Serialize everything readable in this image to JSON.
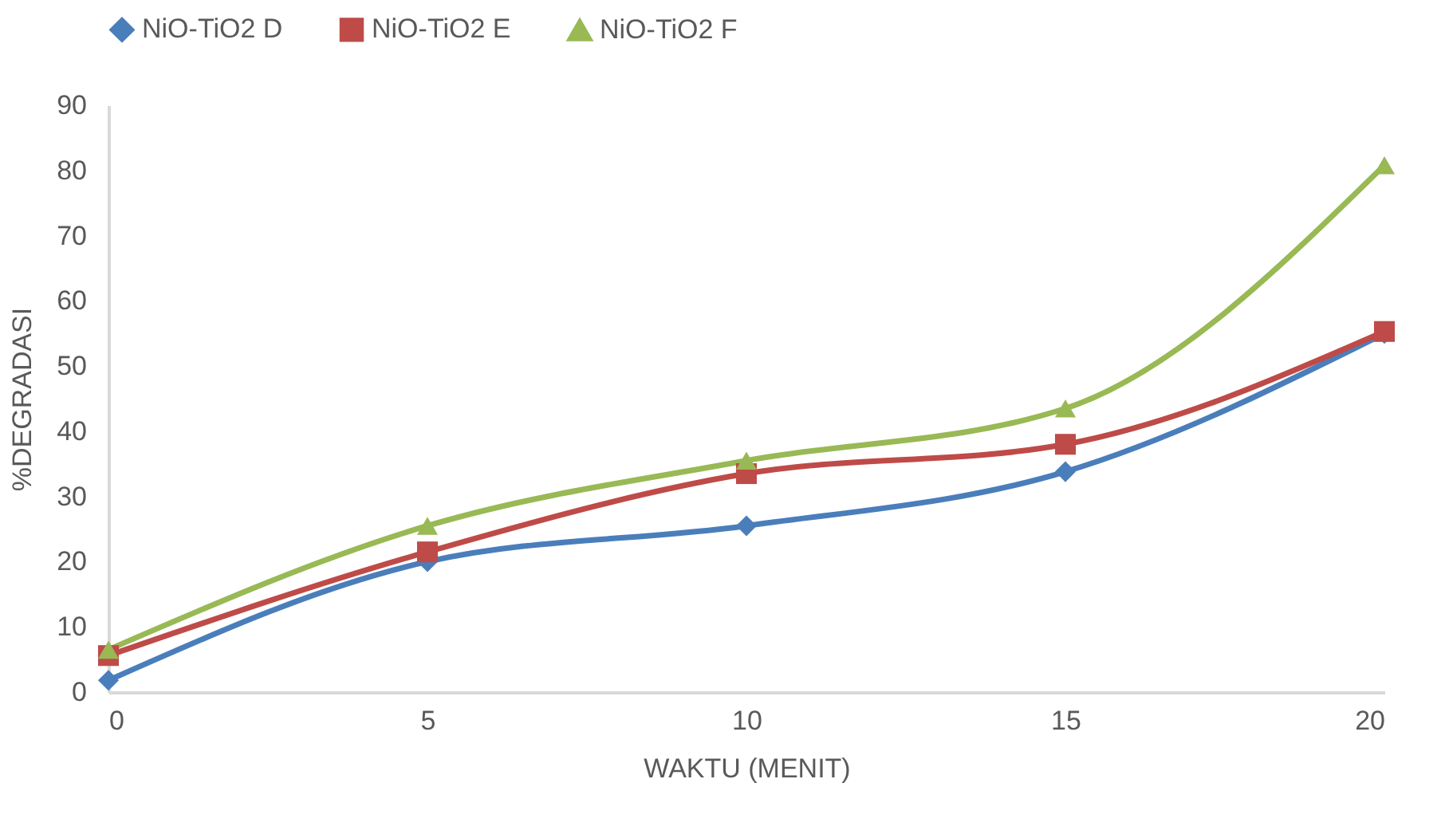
{
  "chart_data": {
    "type": "line",
    "xlabel": "WAKTU (MENIT)",
    "ylabel": "%DEGRADASI",
    "x": [
      0,
      5,
      10,
      15,
      20
    ],
    "series": [
      {
        "name": "NiO-TiO2 D",
        "color": "#4a7ebb",
        "marker": "diamond",
        "values": [
          1.8,
          20,
          25.5,
          33.8,
          55
        ]
      },
      {
        "name": "NiO-TiO2 E",
        "color": "#be4b48",
        "marker": "square",
        "values": [
          5.6,
          21.5,
          33.5,
          38,
          55.3
        ]
      },
      {
        "name": "NiO-TiO2 F",
        "color": "#98b954",
        "marker": "triangle",
        "values": [
          6.5,
          25.5,
          35.5,
          43.5,
          80.8
        ]
      }
    ],
    "xlim": [
      0,
      20
    ],
    "xticks": [
      0,
      5,
      10,
      15,
      20
    ],
    "ylim": [
      0,
      90
    ],
    "yticks": [
      0,
      10,
      20,
      30,
      40,
      50,
      60,
      70,
      80,
      90
    ],
    "grid": false,
    "legend": "top",
    "line_style": "solid"
  }
}
